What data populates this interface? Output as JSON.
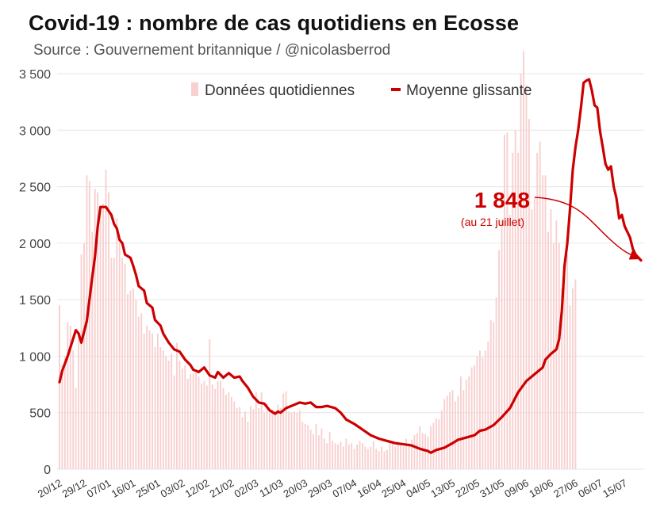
{
  "title": "Covid-19 : nombre de cas quotidiens en Ecosse",
  "subtitle": "Source : Gouvernement britannique / @nicolasberrod",
  "colors": {
    "bars": "#f8d0d0",
    "line": "#cc0000",
    "grid": "#e6e6e6",
    "annotation": "#cc0000"
  },
  "chart_data": {
    "type": "bar",
    "overlay": "line",
    "title": "Covid-19 : nombre de cas quotidiens en Ecosse",
    "subtitle": "Source : Gouvernement britannique / @nicolasberrod",
    "ylim": [
      0,
      3500
    ],
    "yticks": [
      {
        "value": 0,
        "label": "0"
      },
      {
        "value": 500,
        "label": "500"
      },
      {
        "value": 1000,
        "label": "1 000"
      },
      {
        "value": 1500,
        "label": "1 500"
      },
      {
        "value": 2000,
        "label": "2 000"
      },
      {
        "value": 2500,
        "label": "2 500"
      },
      {
        "value": 3000,
        "label": "3 000"
      },
      {
        "value": 3500,
        "label": "3 500"
      }
    ],
    "xlim": [
      "2020-12-20",
      "2021-07-21"
    ],
    "xticks": [
      {
        "date": "2020-12-20",
        "label": "20/12"
      },
      {
        "date": "2020-12-29",
        "label": "29/12"
      },
      {
        "date": "2021-01-07",
        "label": "07/01"
      },
      {
        "date": "2021-01-16",
        "label": "16/01"
      },
      {
        "date": "2021-01-25",
        "label": "25/01"
      },
      {
        "date": "2021-02-03",
        "label": "03/02"
      },
      {
        "date": "2021-02-12",
        "label": "12/02"
      },
      {
        "date": "2021-02-21",
        "label": "21/02"
      },
      {
        "date": "2021-03-02",
        "label": "02/03"
      },
      {
        "date": "2021-03-11",
        "label": "11/03"
      },
      {
        "date": "2021-03-20",
        "label": "20/03"
      },
      {
        "date": "2021-03-29",
        "label": "29/03"
      },
      {
        "date": "2021-04-07",
        "label": "07/04"
      },
      {
        "date": "2021-04-16",
        "label": "16/04"
      },
      {
        "date": "2021-04-25",
        "label": "25/04"
      },
      {
        "date": "2021-05-04",
        "label": "04/05"
      },
      {
        "date": "2021-05-13",
        "label": "13/05"
      },
      {
        "date": "2021-05-22",
        "label": "22/05"
      },
      {
        "date": "2021-05-31",
        "label": "31/05"
      },
      {
        "date": "2021-06-09",
        "label": "09/06"
      },
      {
        "date": "2021-06-18",
        "label": "18/06"
      },
      {
        "date": "2021-06-27",
        "label": "27/06"
      },
      {
        "date": "2021-07-06",
        "label": "06/07"
      },
      {
        "date": "2021-07-15",
        "label": "15/07"
      }
    ],
    "grid": true,
    "legend": {
      "position": "top-right",
      "items": [
        {
          "label": "Données quotidiennes",
          "kind": "bar"
        },
        {
          "label": "Moyenne glissante",
          "kind": "line"
        }
      ]
    },
    "series": [
      {
        "name": "Données quotidiennes",
        "kind": "bar",
        "start_date": "2020-12-20",
        "values": [
          1450,
          920,
          1000,
          1300,
          1270,
          1050,
          720,
          1200,
          1900,
          2000,
          2600,
          2550,
          2100,
          2480,
          2450,
          2300,
          2350,
          2650,
          2450,
          1870,
          1870,
          2220,
          2000,
          1870,
          1820,
          1550,
          1580,
          1600,
          1500,
          1350,
          1380,
          1200,
          1270,
          1230,
          1200,
          1080,
          1200,
          1080,
          1050,
          1000,
          960,
          1020,
          830,
          1120,
          960,
          890,
          920,
          800,
          840,
          850,
          850,
          820,
          760,
          780,
          740,
          1150,
          750,
          710,
          780,
          780,
          720,
          660,
          680,
          640,
          600,
          540,
          550,
          460,
          510,
          420,
          560,
          530,
          680,
          540,
          680,
          500,
          580,
          500,
          530,
          510,
          570,
          540,
          670,
          690,
          510,
          500,
          510,
          500,
          520,
          420,
          400,
          390,
          350,
          310,
          400,
          300,
          360,
          270,
          230,
          330,
          250,
          230,
          220,
          240,
          200,
          270,
          220,
          230,
          180,
          220,
          250,
          230,
          200,
          180,
          200,
          250,
          180,
          160,
          200,
          160,
          170,
          260,
          230,
          200,
          250,
          220,
          200,
          270,
          230,
          260,
          300,
          320,
          380,
          320,
          310,
          290,
          380,
          410,
          450,
          440,
          520,
          620,
          650,
          680,
          700,
          600,
          650,
          820,
          700,
          790,
          820,
          900,
          920,
          1000,
          1050,
          990,
          1050,
          1130,
          1320,
          1300,
          1520,
          1940,
          2200,
          2960,
          2980,
          2250,
          2800,
          3000,
          2800,
          3500,
          3700,
          3400,
          3100,
          2300,
          2400,
          2800,
          2900,
          2600,
          2600,
          2100,
          2300,
          2000,
          2200,
          2000,
          1600,
          1700,
          1900,
          1450,
          1600,
          1680
        ]
      },
      {
        "name": "Moyenne glissante",
        "kind": "line",
        "points": [
          [
            "2020-12-20",
            770
          ],
          [
            "2020-12-21",
            870
          ],
          [
            "2020-12-23",
            1000
          ],
          [
            "2020-12-26",
            1230
          ],
          [
            "2020-12-27",
            1200
          ],
          [
            "2020-12-28",
            1120
          ],
          [
            "2020-12-30",
            1310
          ],
          [
            "2021-01-01",
            1700
          ],
          [
            "2021-01-02",
            1880
          ],
          [
            "2021-01-03",
            2150
          ],
          [
            "2021-01-04",
            2320
          ],
          [
            "2021-01-06",
            2320
          ],
          [
            "2021-01-08",
            2250
          ],
          [
            "2021-01-09",
            2170
          ],
          [
            "2021-01-10",
            2130
          ],
          [
            "2021-01-11",
            2030
          ],
          [
            "2021-01-12",
            2000
          ],
          [
            "2021-01-13",
            1900
          ],
          [
            "2021-01-15",
            1870
          ],
          [
            "2021-01-16",
            1800
          ],
          [
            "2021-01-17",
            1720
          ],
          [
            "2021-01-18",
            1620
          ],
          [
            "2021-01-20",
            1580
          ],
          [
            "2021-01-21",
            1470
          ],
          [
            "2021-01-23",
            1430
          ],
          [
            "2021-01-24",
            1320
          ],
          [
            "2021-01-26",
            1270
          ],
          [
            "2021-01-27",
            1200
          ],
          [
            "2021-01-29",
            1120
          ],
          [
            "2021-01-31",
            1060
          ],
          [
            "2021-02-02",
            1040
          ],
          [
            "2021-02-04",
            970
          ],
          [
            "2021-02-06",
            920
          ],
          [
            "2021-02-07",
            880
          ],
          [
            "2021-02-09",
            860
          ],
          [
            "2021-02-11",
            900
          ],
          [
            "2021-02-13",
            830
          ],
          [
            "2021-02-15",
            810
          ],
          [
            "2021-02-16",
            860
          ],
          [
            "2021-02-18",
            810
          ],
          [
            "2021-02-20",
            850
          ],
          [
            "2021-02-22",
            810
          ],
          [
            "2021-02-24",
            820
          ],
          [
            "2021-02-25",
            780
          ],
          [
            "2021-02-27",
            720
          ],
          [
            "2021-03-01",
            640
          ],
          [
            "2021-03-03",
            590
          ],
          [
            "2021-03-05",
            580
          ],
          [
            "2021-03-07",
            520
          ],
          [
            "2021-03-09",
            490
          ],
          [
            "2021-03-10",
            510
          ],
          [
            "2021-03-11",
            500
          ],
          [
            "2021-03-13",
            540
          ],
          [
            "2021-03-16",
            570
          ],
          [
            "2021-03-18",
            590
          ],
          [
            "2021-03-20",
            580
          ],
          [
            "2021-03-22",
            590
          ],
          [
            "2021-03-24",
            550
          ],
          [
            "2021-03-26",
            550
          ],
          [
            "2021-03-28",
            560
          ],
          [
            "2021-03-31",
            540
          ],
          [
            "2021-04-02",
            500
          ],
          [
            "2021-04-04",
            440
          ],
          [
            "2021-04-07",
            400
          ],
          [
            "2021-04-10",
            350
          ],
          [
            "2021-04-13",
            300
          ],
          [
            "2021-04-16",
            270
          ],
          [
            "2021-04-19",
            250
          ],
          [
            "2021-04-22",
            230
          ],
          [
            "2021-04-25",
            220
          ],
          [
            "2021-04-28",
            210
          ],
          [
            "2021-05-01",
            180
          ],
          [
            "2021-05-04",
            160
          ],
          [
            "2021-05-05",
            145
          ],
          [
            "2021-05-07",
            170
          ],
          [
            "2021-05-10",
            190
          ],
          [
            "2021-05-13",
            230
          ],
          [
            "2021-05-15",
            260
          ],
          [
            "2021-05-18",
            280
          ],
          [
            "2021-05-21",
            300
          ],
          [
            "2021-05-23",
            340
          ],
          [
            "2021-05-25",
            350
          ],
          [
            "2021-05-28",
            390
          ],
          [
            "2021-05-31",
            460
          ],
          [
            "2021-06-03",
            540
          ],
          [
            "2021-06-06",
            680
          ],
          [
            "2021-06-09",
            780
          ],
          [
            "2021-06-11",
            820
          ],
          [
            "2021-06-13",
            860
          ],
          [
            "2021-06-15",
            900
          ],
          [
            "2021-06-16",
            970
          ],
          [
            "2021-06-18",
            1020
          ],
          [
            "2021-06-20",
            1060
          ],
          [
            "2021-06-21",
            1150
          ],
          [
            "2021-06-22",
            1400
          ],
          [
            "2021-06-23",
            1800
          ],
          [
            "2021-06-24",
            2000
          ],
          [
            "2021-06-25",
            2300
          ],
          [
            "2021-06-26",
            2650
          ],
          [
            "2021-06-27",
            2850
          ],
          [
            "2021-06-28",
            3000
          ],
          [
            "2021-06-29",
            3200
          ],
          [
            "2021-06-30",
            3420
          ],
          [
            "2021-07-01",
            3440
          ],
          [
            "2021-07-02",
            3450
          ],
          [
            "2021-07-03",
            3350
          ],
          [
            "2021-07-04",
            3220
          ],
          [
            "2021-07-05",
            3200
          ],
          [
            "2021-07-06",
            2990
          ],
          [
            "2021-07-07",
            2850
          ],
          [
            "2021-07-08",
            2700
          ],
          [
            "2021-07-09",
            2650
          ],
          [
            "2021-07-10",
            2680
          ],
          [
            "2021-07-11",
            2500
          ],
          [
            "2021-07-12",
            2400
          ],
          [
            "2021-07-13",
            2220
          ],
          [
            "2021-07-14",
            2250
          ],
          [
            "2021-07-15",
            2150
          ],
          [
            "2021-07-16",
            2100
          ],
          [
            "2021-07-17",
            2050
          ],
          [
            "2021-07-18",
            1950
          ],
          [
            "2021-07-19",
            1900
          ],
          [
            "2021-07-21",
            1848
          ]
        ]
      }
    ],
    "annotations": [
      {
        "value_text": "1 848",
        "note": "(au 21 juillet)",
        "date": "2021-07-21",
        "value": 1848,
        "arrow": true
      }
    ]
  }
}
